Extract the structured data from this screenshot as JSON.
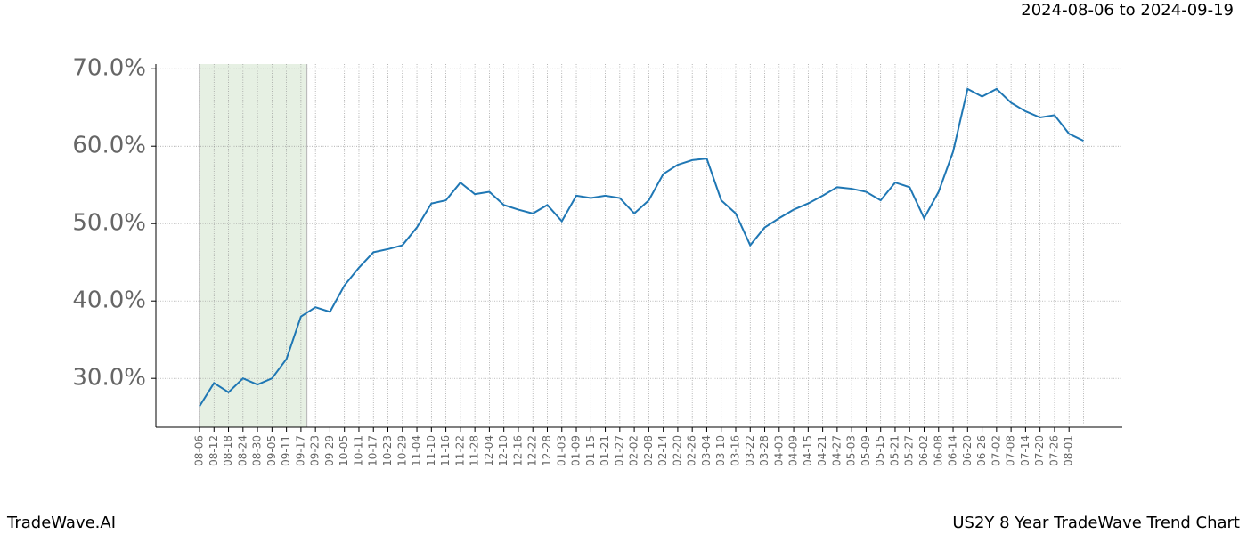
{
  "chart_data": {
    "type": "line",
    "title": "US2Y 8 Year TradeWave Trend Chart",
    "subtitle": "2024-08-06 to 2024-09-19",
    "brand": "TradeWave.AI",
    "categories": [
      "08-06",
      "08-12",
      "08-18",
      "08-24",
      "08-30",
      "09-05",
      "09-11",
      "09-17",
      "09-23",
      "09-29",
      "10-05",
      "10-11",
      "10-17",
      "10-23",
      "10-29",
      "11-04",
      "11-10",
      "11-16",
      "11-22",
      "11-28",
      "12-04",
      "12-10",
      "12-16",
      "12-22",
      "12-28",
      "01-03",
      "01-09",
      "01-15",
      "01-21",
      "01-27",
      "02-02",
      "02-08",
      "02-14",
      "02-20",
      "02-26",
      "03-04",
      "03-10",
      "03-16",
      "03-22",
      "03-28",
      "04-03",
      "04-09",
      "04-15",
      "04-21",
      "04-27",
      "05-03",
      "05-09",
      "05-15",
      "05-21",
      "05-27",
      "06-02",
      "06-08",
      "06-14",
      "06-20",
      "06-26",
      "07-02",
      "07-08",
      "07-14",
      "07-20",
      "07-26",
      "08-01",
      null
    ],
    "series": [
      {
        "color": "#1f77b4",
        "values": [
          26.4,
          29.4,
          28.2,
          30,
          29.2,
          30,
          32.5,
          38,
          39.2,
          38.6,
          42,
          44.3,
          46.3,
          46.7,
          47.2,
          49.5,
          52.6,
          53,
          55.3,
          53.8,
          54.1,
          52.4,
          51.8,
          51.3,
          52.4,
          50.3,
          53.6,
          53.3,
          53.6,
          53.3,
          51.3,
          53,
          56.4,
          57.6,
          58.2,
          58.4,
          53,
          51.3,
          47.2,
          49.5,
          50.7,
          51.8,
          52.6,
          53.6,
          54.7,
          54.5,
          54.1,
          53,
          55.3,
          54.7,
          50.7,
          54.1,
          59.3,
          67.4,
          66.4,
          67.4,
          65.6,
          64.5,
          63.7,
          64,
          61.6,
          60.7
        ]
      }
    ],
    "ylim": [
      23.7,
      70.6
    ],
    "yticks": [
      {
        "value": 30,
        "label": "30.0%"
      },
      {
        "value": 40,
        "label": "40.0%"
      },
      {
        "value": 50,
        "label": "50.0%"
      },
      {
        "value": 60,
        "label": "60.0%"
      },
      {
        "value": 70,
        "label": "70.0%"
      }
    ],
    "grid": true
  }
}
